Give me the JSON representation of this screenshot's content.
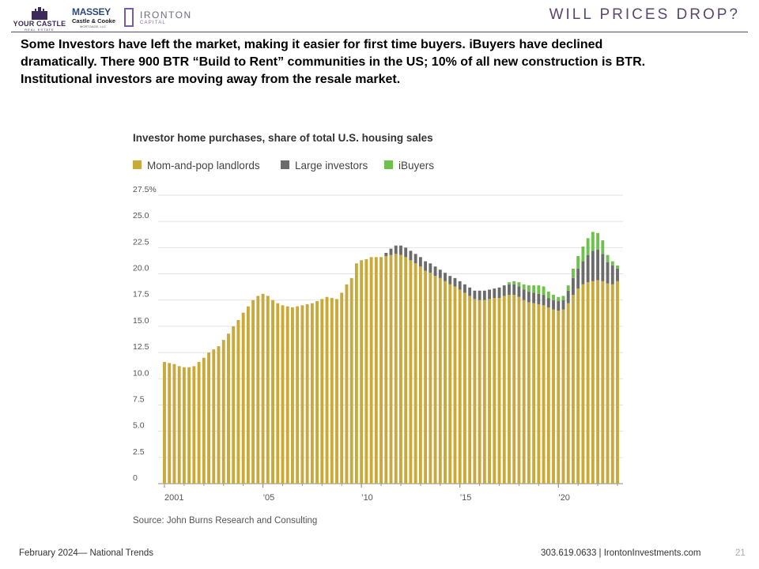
{
  "header": {
    "title": "WILL PRICES DROP?",
    "logos": {
      "your_castle": {
        "line1": "YOUR CASTLE",
        "line2": "REAL ESTATE"
      },
      "massey": {
        "line1": "MASSEY",
        "line2": "Castle & Cooke",
        "line3": "MORTGAGE, LLC"
      },
      "ironton": {
        "line1": "IRONTON",
        "line2": "CAPITAL"
      }
    }
  },
  "body": {
    "text": "Some Investors have left the market, making it easier for first time buyers.  iBuyers have declined dramatically.  There 900 BTR “Build to Rent” communities in the US; 10% of all new construction is BTR.  Institutional investors are moving away from the resale market."
  },
  "colors": {
    "mom_and_pop": "#c9a93a",
    "large_investors": "#6b6b6b",
    "ibuyers": "#6cc24a",
    "title_accent": "#5a4670"
  },
  "chart_data": {
    "type": "bar",
    "stacked": true,
    "title": "Investor home purchases, share of total U.S. housing sales",
    "source": "Source: John Burns Research and Consulting",
    "ylim": [
      0,
      27.5
    ],
    "y_ticks": [
      "0",
      "2.5",
      "5.0",
      "7.5",
      "10.0",
      "12.5",
      "15.0",
      "17.5",
      "20.0",
      "22.5",
      "25.0",
      "27.5%"
    ],
    "x_tick_labels": [
      {
        "index": 0,
        "label": "2001"
      },
      {
        "index": 20,
        "label": "’05"
      },
      {
        "index": 40,
        "label": "’10"
      },
      {
        "index": 60,
        "label": "’15"
      },
      {
        "index": 80,
        "label": "’20"
      }
    ],
    "legend_position": "top-left",
    "series": [
      {
        "name": "Mom-and-pop landlords",
        "values": [
          11.6,
          11.5,
          11.4,
          11.2,
          11.1,
          11.1,
          11.2,
          11.6,
          12.0,
          12.5,
          12.8,
          13.1,
          13.7,
          14.3,
          15.0,
          15.6,
          16.3,
          16.9,
          17.5,
          17.9,
          18.1,
          17.9,
          17.5,
          17.2,
          17.0,
          16.9,
          16.8,
          16.9,
          17.0,
          17.1,
          17.2,
          17.4,
          17.6,
          17.8,
          17.7,
          17.6,
          18.2,
          19.0,
          19.6,
          21.0,
          21.3,
          21.4,
          21.6,
          21.6,
          21.6,
          21.7,
          21.8,
          21.9,
          21.8,
          21.6,
          21.3,
          21.0,
          20.7,
          20.3,
          20.1,
          19.8,
          19.6,
          19.3,
          19.0,
          18.8,
          18.5,
          18.2,
          17.9,
          17.6,
          17.5,
          17.5,
          17.6,
          17.7,
          17.7,
          17.9,
          18.0,
          18.0,
          17.8,
          17.5,
          17.3,
          17.2,
          17.1,
          17.0,
          16.8,
          16.6,
          16.5,
          16.6,
          17.2,
          18.0,
          18.6,
          19.0,
          19.2,
          19.3,
          19.4,
          19.3,
          19.1,
          19.0,
          19.3
        ]
      },
      {
        "name": "Large investors",
        "values": [
          0,
          0,
          0,
          0,
          0,
          0,
          0,
          0,
          0,
          0,
          0,
          0,
          0,
          0,
          0,
          0,
          0,
          0,
          0,
          0,
          0,
          0,
          0,
          0,
          0,
          0,
          0,
          0,
          0,
          0,
          0,
          0,
          0,
          0,
          0,
          0,
          0,
          0,
          0,
          0,
          0,
          0,
          0,
          0,
          0,
          0.3,
          0.6,
          0.8,
          0.9,
          0.9,
          0.9,
          0.9,
          0.9,
          0.9,
          0.9,
          0.9,
          0.8,
          0.8,
          0.8,
          0.8,
          0.8,
          0.8,
          0.8,
          0.8,
          0.9,
          0.9,
          0.9,
          0.9,
          1.0,
          1.0,
          1.0,
          1.0,
          1.0,
          1.0,
          1.0,
          1.0,
          1.0,
          1.0,
          0.9,
          0.9,
          0.9,
          0.9,
          1.2,
          1.6,
          1.9,
          2.2,
          2.6,
          2.9,
          2.9,
          2.6,
          2.0,
          1.8,
          1.2
        ]
      },
      {
        "name": "iBuyers",
        "values": [
          0,
          0,
          0,
          0,
          0,
          0,
          0,
          0,
          0,
          0,
          0,
          0,
          0,
          0,
          0,
          0,
          0,
          0,
          0,
          0,
          0,
          0,
          0,
          0,
          0,
          0,
          0,
          0,
          0,
          0,
          0,
          0,
          0,
          0,
          0,
          0,
          0,
          0,
          0,
          0,
          0,
          0,
          0,
          0,
          0,
          0,
          0,
          0,
          0,
          0,
          0,
          0,
          0,
          0,
          0,
          0,
          0,
          0,
          0,
          0,
          0,
          0,
          0,
          0,
          0,
          0,
          0,
          0,
          0,
          0,
          0.2,
          0.3,
          0.4,
          0.5,
          0.6,
          0.7,
          0.8,
          0.8,
          0.6,
          0.5,
          0.4,
          0.4,
          0.5,
          0.9,
          1.2,
          1.4,
          1.6,
          1.8,
          1.6,
          1.3,
          0.7,
          0.4,
          0.3
        ]
      }
    ]
  },
  "footer": {
    "left": "February 2024— National Trends",
    "right": "303.619.0633 | IrontonInvestments.com",
    "page_number": "21"
  }
}
